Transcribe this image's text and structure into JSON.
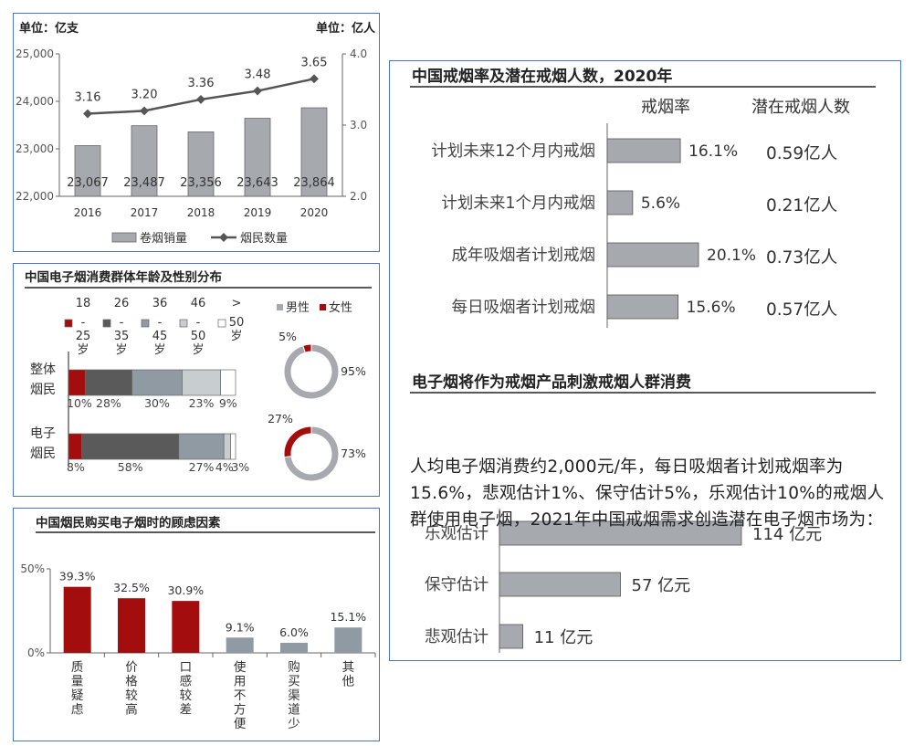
{
  "colors": {
    "gray": "#a6aaae",
    "red": "#a30d0d",
    "dark": "#5a5a5a",
    "mid": "#909aa2",
    "light": "#c8cdd0",
    "white": "#ffffff",
    "line": "#555555",
    "border": "#4a74c9"
  },
  "chart_data": [
    {
      "id": "sales",
      "type": "bar+line",
      "unit_left": "单位：亿支",
      "unit_right": "单位：亿人",
      "categories": [
        "2016",
        "2017",
        "2018",
        "2019",
        "2020"
      ],
      "series": [
        {
          "name": "卷烟销量",
          "type": "bar",
          "axis": "left",
          "values": [
            23067,
            23487,
            23356,
            23643,
            23864
          ],
          "labels": [
            "23,067",
            "23,487",
            "23,356",
            "23,643",
            "23,864"
          ]
        },
        {
          "name": "烟民数量",
          "type": "line",
          "axis": "right",
          "values": [
            3.16,
            3.2,
            3.36,
            3.48,
            3.65
          ],
          "labels": [
            "3.16",
            "3.20",
            "3.36",
            "3.48",
            "3.65"
          ]
        }
      ],
      "ylim_left": [
        22000,
        25000
      ],
      "yticks_left": [
        "22,000",
        "23,000",
        "24,000",
        "25,000"
      ],
      "ylim_right": [
        2.0,
        4.0
      ],
      "yticks_right": [
        "2.0",
        "3.0",
        "4.0"
      ],
      "legend_position": "bottom"
    },
    {
      "id": "age_gender",
      "type": "stacked-bar+donut",
      "title": "中国电子烟消费群体年龄及性别分布",
      "legend": [
        {
          "name": "18\n-\n25\n岁",
          "color": "#a30d0d"
        },
        {
          "name": "26\n-\n35\n岁",
          "color": "#5a5a5a"
        },
        {
          "name": "36\n-\n45\n岁",
          "color": "#909aa2"
        },
        {
          "name": "46\n-\n50\n岁",
          "color": "#c8cdd0"
        },
        {
          "name": ">\n50\n岁",
          "color": "#ffffff"
        }
      ],
      "categories": [
        "整体\n烟民",
        "电子\n烟民"
      ],
      "rows": [
        {
          "values": [
            10,
            28,
            30,
            23,
            9
          ],
          "labels": [
            "10%",
            "28%",
            "30%",
            "23%",
            "9%"
          ]
        },
        {
          "values": [
            8,
            58,
            27,
            4,
            3
          ],
          "labels": [
            "8%",
            "58%",
            "27%",
            "4%",
            "3%"
          ]
        }
      ],
      "gender_legend": [
        {
          "name": "男性",
          "color": "#a6aaae"
        },
        {
          "name": "女性",
          "color": "#a30d0d"
        }
      ],
      "donuts": [
        {
          "female": 5,
          "male": 95,
          "female_label": "5%",
          "male_label": "95%"
        },
        {
          "female": 27,
          "male": 73,
          "female_label": "27%",
          "male_label": "73%"
        }
      ]
    },
    {
      "id": "concerns",
      "type": "bar",
      "title": "中国烟民购买电子烟时的顾虑因素",
      "categories": [
        "质量疑虑",
        "价格较高",
        "口感较差",
        "使用不方便",
        "购买渠道少",
        "其他"
      ],
      "values": [
        39.3,
        32.5,
        30.9,
        9.1,
        6.0,
        15.1
      ],
      "labels": [
        "39.3%",
        "32.5%",
        "30.9%",
        "9.1%",
        "6.0%",
        "15.1%"
      ],
      "highlight": [
        true,
        true,
        true,
        false,
        false,
        false
      ],
      "ylim": [
        0,
        50
      ],
      "yticks": [
        "0%",
        "50%"
      ]
    },
    {
      "id": "quit",
      "type": "hbar",
      "title": "中国戒烟率及潜在戒烟人数，2020年",
      "col_rate": "戒烟率",
      "col_people": "潜在戒烟人数",
      "categories": [
        "计划未来12个月内戒烟",
        "计划未来1个月内戒烟",
        "成年吸烟者计划戒烟",
        "每日吸烟者计划戒烟"
      ],
      "values": [
        16.1,
        5.6,
        20.1,
        15.6
      ],
      "labels": [
        "16.1%",
        "5.6%",
        "20.1%",
        "15.6%"
      ],
      "people": [
        "0.59亿人",
        "0.21亿人",
        "0.73亿人",
        "0.57亿人"
      ]
    },
    {
      "id": "market",
      "type": "hbar",
      "title": "电子烟将作为戒烟产品刺激戒烟人群消费",
      "paragraph": "人均电子烟消费约2,000元/年，每日吸烟者计划戒烟率为15.6%，悲观估计1%、保守估计5%，乐观估计10%的戒烟人群使用电子烟，2021年中国戒烟需求创造潜在电子烟市场为：",
      "categories": [
        "乐观估计",
        "保守估计",
        "悲观估计"
      ],
      "values": [
        114,
        57,
        11
      ],
      "labels": [
        "114 亿元",
        "57 亿元",
        "11 亿元"
      ]
    }
  ]
}
